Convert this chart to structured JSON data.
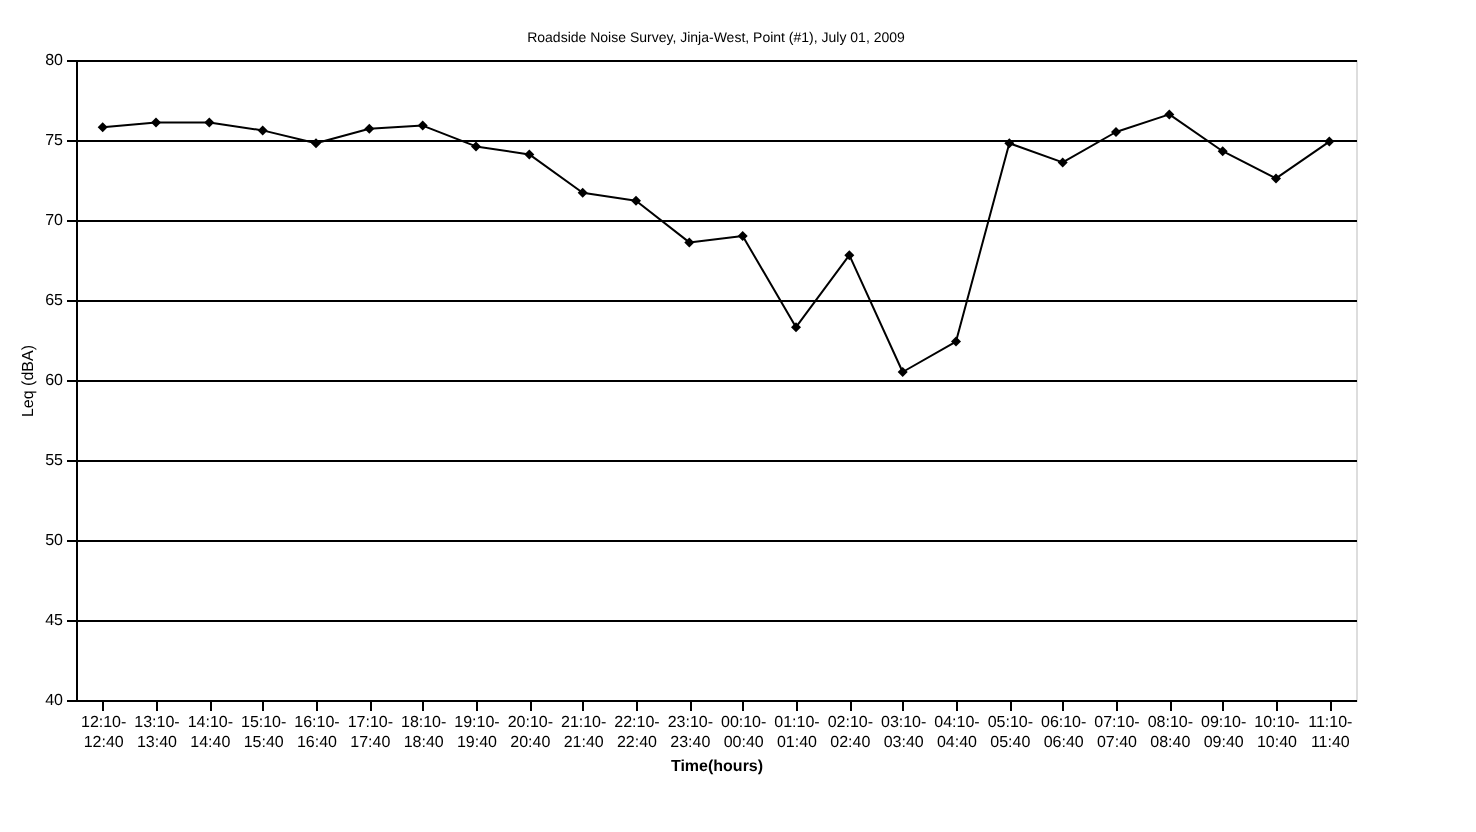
{
  "chart_data": {
    "type": "line",
    "title": "Roadside Noise Survey, Jinja-West, Point (#1), July 01, 2009",
    "xlabel": "Time(hours)",
    "ylabel": "Leq (dBA)",
    "categories": [
      "12:10-\n12:40",
      "13:10-\n13:40",
      "14:10-\n14:40",
      "15:10-\n15:40",
      "16:10-\n16:40",
      "17:10-\n17:40",
      "18:10-\n18:40",
      "19:10-\n19:40",
      "20:10-\n20:40",
      "21:10-\n21:40",
      "22:10-\n22:40",
      "23:10-\n23:40",
      "00:10-\n00:40",
      "01:10-\n01:40",
      "02:10-\n02:40",
      "03:10-\n03:40",
      "04:10-\n04:40",
      "05:10-\n05:40",
      "06:10-\n06:40",
      "07:10-\n07:40",
      "08:10-\n08:40",
      "09:10-\n09:40",
      "10:10-\n10:40",
      "11:10-\n11:40"
    ],
    "series": [
      {
        "color": "#000000",
        "values": [
          75.8,
          76.1,
          76.1,
          75.6,
          74.8,
          75.7,
          75.9,
          74.6,
          74.1,
          71.7,
          71.2,
          68.6,
          69.0,
          63.3,
          67.8,
          60.5,
          62.4,
          74.8,
          73.6,
          75.5,
          76.6,
          74.3,
          72.6,
          74.9
        ]
      }
    ],
    "ylim": [
      40,
      80
    ],
    "yticks": [
      40,
      45,
      50,
      55,
      60,
      65,
      70,
      75,
      80
    ],
    "grid": "y",
    "marker": "diamond",
    "line_style": "solid"
  }
}
